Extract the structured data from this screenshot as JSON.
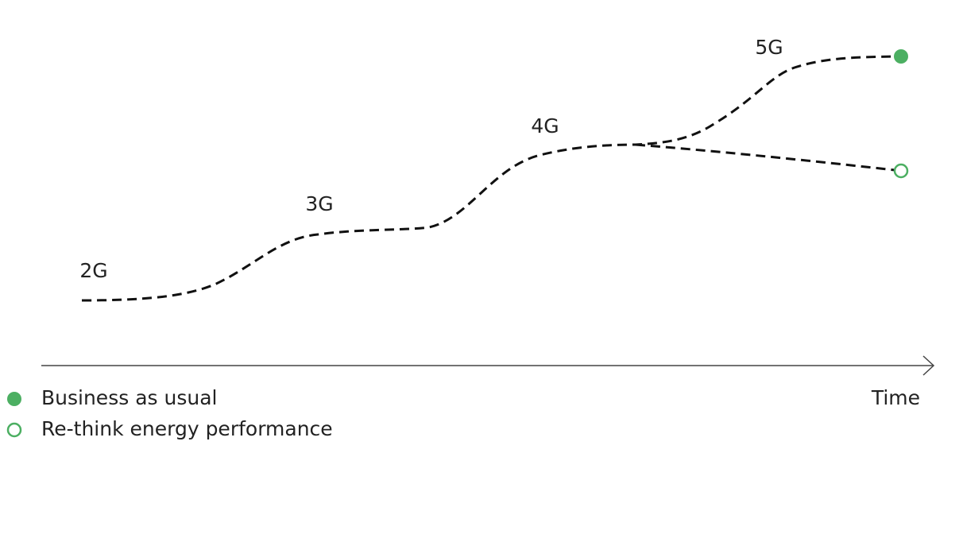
{
  "labels": [
    "2G",
    "3G",
    "4G",
    "5G"
  ],
  "axis_label": "Time",
  "legend": [
    {
      "label": "Business as usual"
    },
    {
      "label": "Re-think energy performance"
    }
  ]
}
